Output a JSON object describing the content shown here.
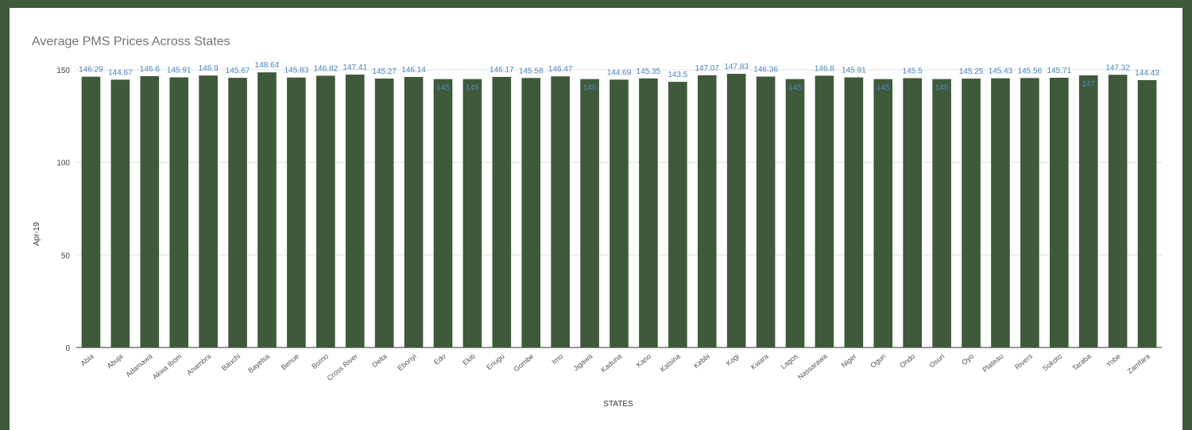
{
  "chart_data": {
    "type": "bar",
    "title": "Average PMS Prices Across States",
    "xlabel": "STATES",
    "ylabel": "Apr-19",
    "ylim": [
      0,
      150
    ],
    "yticks": [
      0,
      50,
      100,
      150
    ],
    "grid": true,
    "bar_color": "#3f5a3a",
    "label_color": "#4a86c5",
    "categories": [
      "Abia",
      "Abuja",
      "Adamawa",
      "Akwa Ibom",
      "Anambra",
      "Bauchi",
      "Bayelsa",
      "Benue",
      "Borno",
      "Cross River",
      "Delta",
      "Ebonyi",
      "Edo",
      "Ekiti",
      "Enugu",
      "Gombe",
      "Imo",
      "Jigawa",
      "Kaduna",
      "Kano",
      "Katsina",
      "Kebbi",
      "Kogi",
      "Kwara",
      "Lagos",
      "Nassarawa",
      "Niger",
      "Ogun",
      "Ondo",
      "Osun",
      "Oyo",
      "Plateau",
      "Rivers",
      "Sokoto",
      "Taraba",
      "Yobe",
      "Zamfara"
    ],
    "values": [
      146.29,
      144.67,
      146.6,
      145.91,
      146.9,
      145.67,
      148.64,
      145.83,
      146.82,
      147.41,
      145.27,
      146.14,
      145,
      145,
      146.17,
      145.58,
      146.47,
      145,
      144.69,
      145.35,
      143.5,
      147.07,
      147.83,
      146.36,
      145,
      146.8,
      145.91,
      145,
      145.5,
      145,
      145.25,
      145.43,
      145.56,
      145.71,
      147,
      147.32,
      144.43
    ],
    "data_labels": [
      "146.29",
      "144.67",
      "146.6",
      "145.91",
      "146.9",
      "145.67",
      "148.64",
      "145.83",
      "146.82",
      "147.41",
      "145.27",
      "146.14",
      "145",
      "145",
      "146.17",
      "145.58",
      "146.47",
      "145",
      "144.69",
      "145.35",
      "143.5",
      "147.07",
      "147.83",
      "146.36",
      "145",
      "146.8",
      "145.91",
      "145",
      "145.5",
      "145",
      "145.25",
      "145.43",
      "145.56",
      "145.71",
      "147",
      "147.32",
      "144.43"
    ]
  }
}
